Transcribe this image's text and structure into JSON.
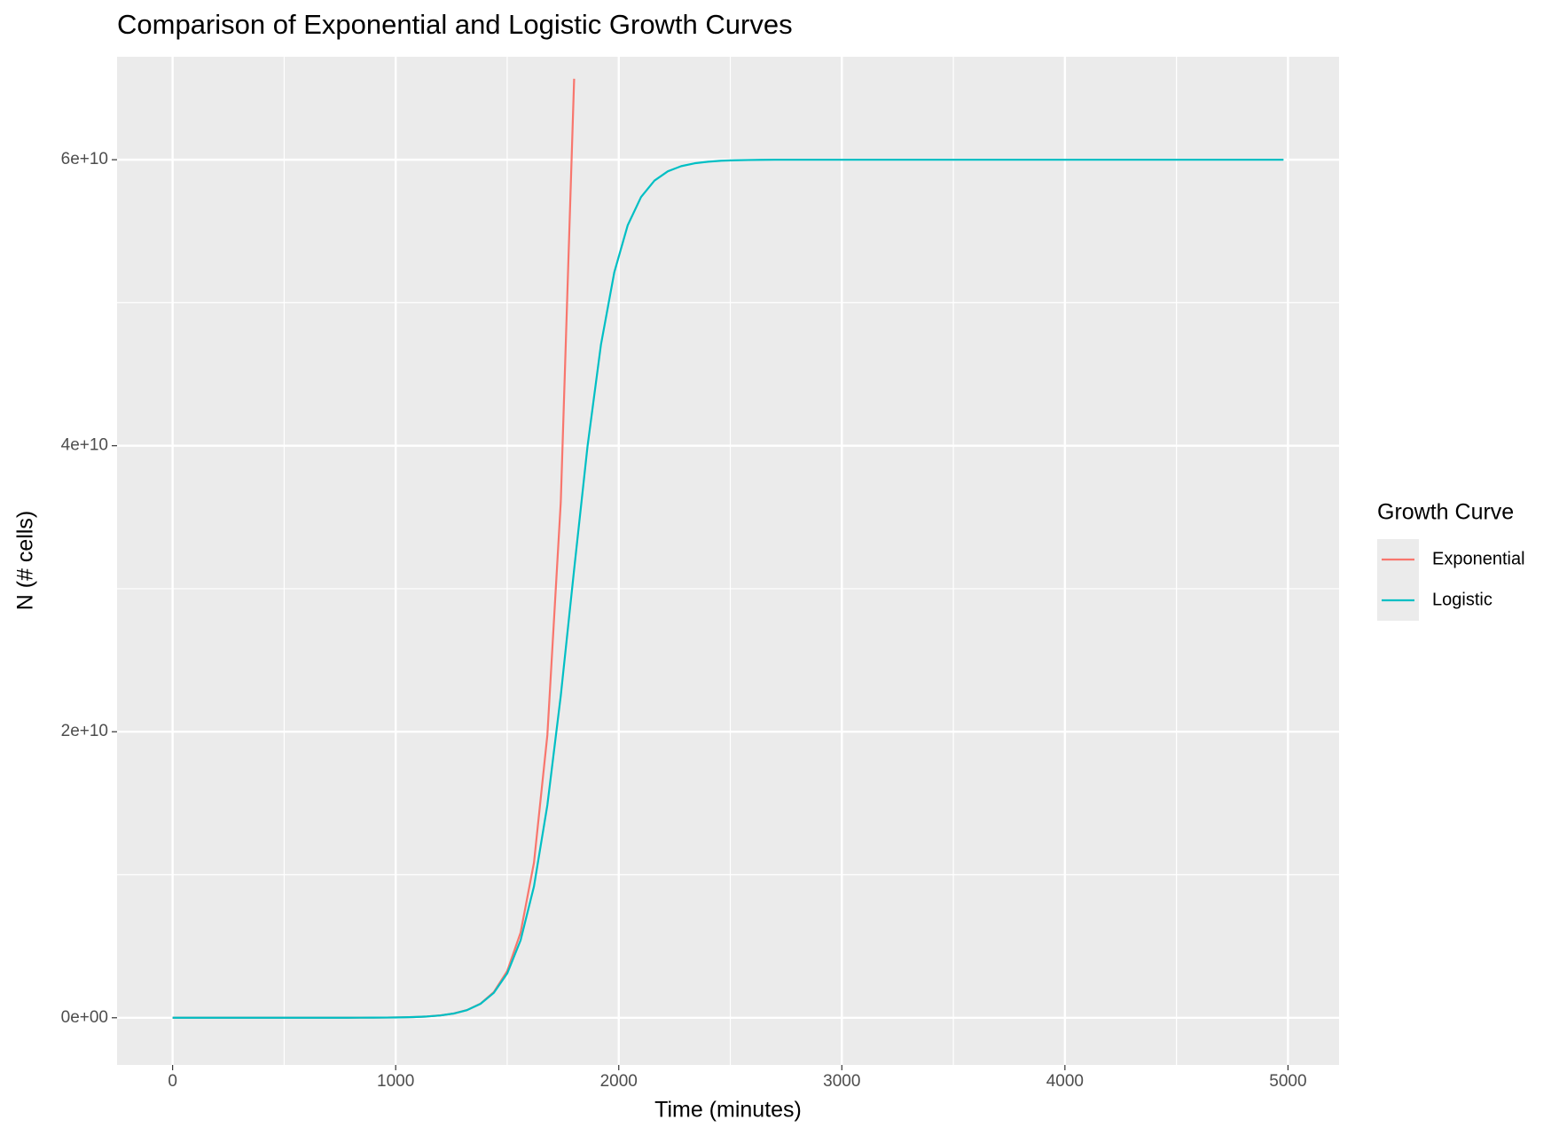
{
  "chart_data": {
    "type": "line",
    "title": "Comparison of Exponential and Logistic Growth Curves",
    "x_label": "Time (minutes)",
    "y_label": "N (# cells)",
    "legend_title": "Growth Curve",
    "legend_position": "right",
    "grid": true,
    "xlim": [
      -249,
      5229
    ],
    "xticks": [
      0,
      1000,
      2000,
      3000,
      4000,
      5000
    ],
    "x_minor_ticks": [
      500,
      1500,
      2500,
      3500,
      4500
    ],
    "ylim": [
      -3300000000,
      67200000000
    ],
    "yticks": [
      {
        "value": 0,
        "label": "0e+00"
      },
      {
        "value": 20000000000,
        "label": "2e+10"
      },
      {
        "value": 40000000000,
        "label": "4e+10"
      },
      {
        "value": 60000000000,
        "label": "6e+10"
      }
    ],
    "y_minor_ticks": [
      10000000000,
      30000000000,
      50000000000
    ],
    "x": [
      0,
      60,
      120,
      180,
      240,
      300,
      360,
      420,
      480,
      540,
      600,
      660,
      720,
      780,
      840,
      900,
      960,
      1020,
      1080,
      1140,
      1200,
      1260,
      1320,
      1380,
      1440,
      1500,
      1560,
      1620,
      1680,
      1740,
      1800,
      1860,
      1920,
      1980,
      2040,
      2100,
      2160,
      2220,
      2280,
      2340,
      2400,
      2460,
      2520,
      2580,
      2640,
      2700,
      2760,
      2820,
      2880,
      2940,
      3000,
      3060,
      3120,
      3180,
      3240,
      3300,
      3360,
      3420,
      3480,
      3540,
      3600,
      3660,
      3720,
      3780,
      3840,
      3900,
      3960,
      4020,
      4080,
      4140,
      4200,
      4260,
      4320,
      4380,
      4440,
      4500,
      4560,
      4620,
      4680,
      4740,
      4800,
      4860,
      4920,
      4980
    ],
    "series": [
      {
        "name": "Exponential",
        "color": "#f8766d",
        "values": [
          1000,
          1822,
          3320,
          6050,
          11023,
          20086,
          36598,
          66686,
          121510,
          221406,
          403429,
          735095,
          1339431,
          2440602,
          4447067,
          8103084,
          14764782,
          26903186,
          49020801,
          89321723,
          162754791,
          296558565,
          540364937,
          984609112,
          1794074772,
          3269017372,
          5956538014,
          10853519928,
          19776402659,
          36034955088,
          65659969137,
          null,
          null,
          null,
          null,
          null,
          null,
          null,
          null,
          null,
          null,
          null,
          null,
          null,
          null,
          null,
          null,
          null,
          null,
          null,
          null,
          null,
          null,
          null,
          null,
          null,
          null,
          null,
          null,
          null,
          null,
          null,
          null,
          null,
          null,
          null,
          null,
          null,
          null,
          null,
          null,
          null,
          null,
          null,
          null,
          null,
          null,
          null,
          null,
          null,
          null,
          null,
          null,
          null
        ]
      },
      {
        "name": "Logistic",
        "color": "#00bfc4",
        "values": [
          1000,
          1822,
          3320,
          6050,
          11023,
          20086,
          36598,
          66686,
          121510,
          221406,
          403429,
          735095,
          1339431,
          2440602,
          4447067,
          8103084,
          14764782,
          26903186,
          49020801,
          89321723,
          162400000,
          295100000,
          535600000,
          968700000,
          1742000000,
          3100000000,
          5419000000,
          9191000000,
          14874000000,
          22514000000,
          31352000000,
          39960000000,
          47050000000,
          52130000000,
          55410000000,
          57390000000,
          58540000000,
          59190000000,
          59550000000,
          59750000000,
          59860000000,
          59930000000,
          59960000000,
          59980000000,
          59990000000,
          60000000000,
          60000000000,
          60000000000,
          60000000000,
          60000000000,
          60000000000,
          60000000000,
          60000000000,
          60000000000,
          60000000000,
          60000000000,
          60000000000,
          60000000000,
          60000000000,
          60000000000,
          60000000000,
          60000000000,
          60000000000,
          60000000000,
          60000000000,
          60000000000,
          60000000000,
          60000000000,
          60000000000,
          60000000000,
          60000000000,
          60000000000,
          60000000000,
          60000000000,
          60000000000,
          60000000000,
          60000000000,
          60000000000,
          60000000000,
          60000000000,
          60000000000,
          60000000000,
          60000000000,
          60000000000
        ]
      }
    ]
  }
}
